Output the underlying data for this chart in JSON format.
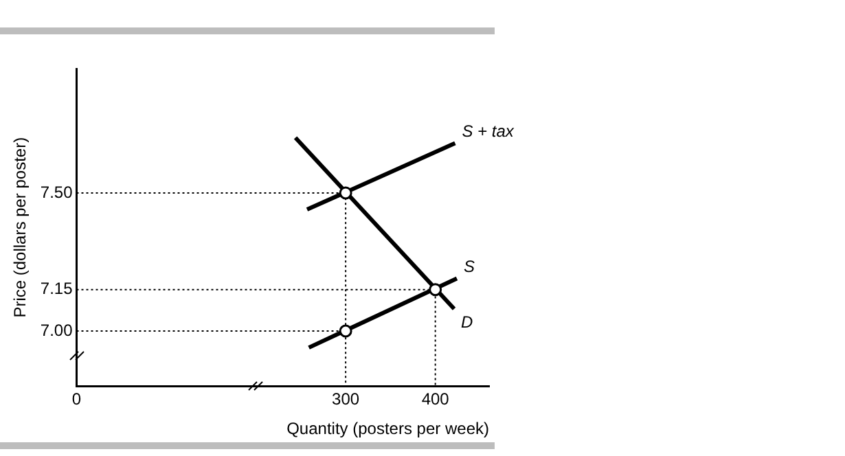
{
  "chart_data": {
    "type": "line",
    "xlabel": "Quantity (posters per week)",
    "ylabel": "Price (dollars per poster)",
    "xlim": [
      0,
      460
    ],
    "xticks": [
      0,
      300,
      400
    ],
    "ylim": [
      6.8,
      7.95
    ],
    "yticks": [
      {
        "value": 7.0,
        "label": "7.00"
      },
      {
        "value": 7.15,
        "label": "7.15"
      },
      {
        "value": 7.5,
        "label": "7.50"
      }
    ],
    "grid": false,
    "legend": false,
    "marker": "none",
    "series": [
      {
        "name": "S + tax",
        "color": "#000000",
        "x": [
          257,
          422
        ],
        "values": [
          7.44,
          7.68
        ]
      },
      {
        "name": "D",
        "color": "#000000",
        "x": [
          244,
          421
        ],
        "values": [
          7.7,
          7.08
        ]
      },
      {
        "name": "S",
        "color": "#000000",
        "x": [
          259,
          424
        ],
        "values": [
          6.94,
          7.19
        ]
      },
      {
        "color": "#000000",
        "line_style": "dotted",
        "x": [
          0,
          300,
          300
        ],
        "values": [
          7.5,
          7.5,
          6.8
        ]
      },
      {
        "color": "#000000",
        "line_style": "dotted",
        "x": [
          0,
          400,
          400
        ],
        "values": [
          7.15,
          7.15,
          6.8
        ]
      },
      {
        "color": "#000000",
        "line_style": "dotted",
        "x": [
          0,
          300
        ],
        "values": [
          7.0,
          7.0
        ]
      },
      {
        "type": "scatter",
        "marker": "circle",
        "color": "#000000",
        "x": [
          300,
          300,
          400
        ],
        "values": [
          7.5,
          7.0,
          7.15
        ]
      }
    ]
  }
}
